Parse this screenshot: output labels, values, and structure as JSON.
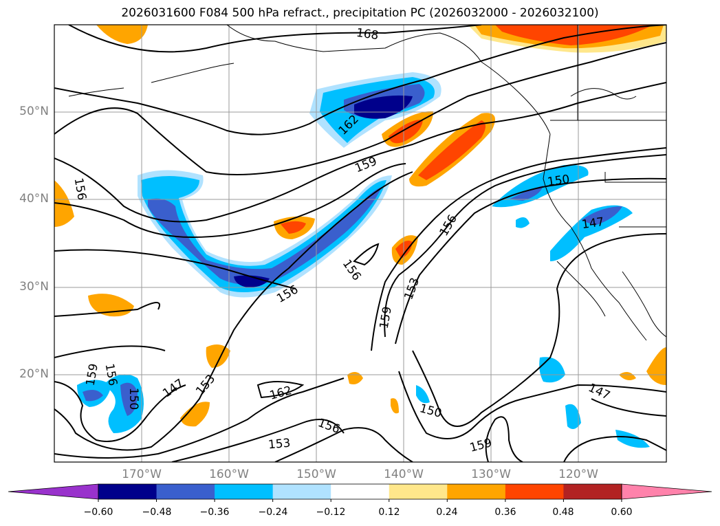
{
  "title": "2026031600 F084 500 hPa refract., precipitation PC (2026032000 - 2026032100)",
  "lat_labels": [
    "50°N",
    "40°N",
    "30°N",
    "20°N"
  ],
  "lon_labels": [
    "170°W",
    "160°W",
    "150°W",
    "140°W",
    "130°W",
    "120°W"
  ],
  "contour_labels": [
    "168",
    "162",
    "159",
    "156",
    "156",
    "156",
    "156",
    "153",
    "159",
    "150",
    "147",
    "159",
    "156",
    "150",
    "147",
    "153",
    "162",
    "156",
    "153",
    "150",
    "159",
    "147"
  ],
  "colorbar": {
    "ticks": [
      "−0.60",
      "−0.48",
      "−0.36",
      "−0.24",
      "−0.12",
      "0.12",
      "0.24",
      "0.36",
      "0.48",
      "0.60"
    ],
    "colors": [
      "#9932cc",
      "#00008b",
      "#3a5fcd",
      "#00bfff",
      "#b0e2ff",
      "#ffffff",
      "#ffe78b",
      "#ffa500",
      "#ff4500",
      "#b22222",
      "#ff82ab"
    ]
  }
}
